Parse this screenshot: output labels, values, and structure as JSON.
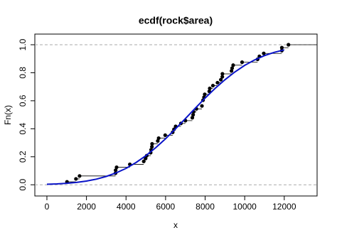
{
  "chart_data": {
    "type": "ecdf",
    "title": "ecdf(rock$area)",
    "x_label": "x",
    "y_label": "Fn(x)",
    "xlim": [
      -610,
      13660
    ],
    "ylim": [
      -0.08,
      1.076
    ],
    "xticks": [
      0,
      2000,
      4000,
      6000,
      8000,
      10000,
      12000
    ],
    "yticks": [
      {
        "value": 0,
        "label": "0.0"
      },
      0.2,
      0.4,
      0.6,
      0.8,
      {
        "value": 1,
        "label": "1.0"
      }
    ],
    "reference_lines": [
      0,
      1
    ],
    "reference_color": "#aaaaaa",
    "series": [
      {
        "color": "#000000",
        "x": [
          1016,
          1468,
          1651,
          3469,
          3475,
          3524,
          4193,
          4895,
          4990,
          5048,
          5246,
          5267,
          5308,
          5318,
          5605,
          5650,
          5980,
          6360,
          6425,
          6509,
          6775,
          7002,
          7352,
          7392,
          7416,
          7558,
          7838,
          7894,
          7943,
          7979,
          8209,
          8233,
          8393,
          8624,
          8793,
          8868,
          8874,
          9333,
          9364,
          9417,
          9867,
          10651,
          10743,
          10962,
          11876,
          11878,
          12212
        ],
        "values": [
          0.021,
          0.042,
          0.063,
          0.083,
          0.104,
          0.125,
          0.146,
          0.167,
          0.188,
          0.208,
          0.229,
          0.25,
          0.271,
          0.292,
          0.313,
          0.333,
          0.354,
          0.375,
          0.396,
          0.417,
          0.438,
          0.458,
          0.479,
          0.5,
          0.521,
          0.542,
          0.563,
          0.604,
          0.625,
          0.646,
          0.667,
          0.688,
          0.708,
          0.729,
          0.75,
          0.771,
          0.792,
          0.813,
          0.833,
          0.854,
          0.875,
          0.896,
          0.917,
          0.938,
          0.958,
          0.979,
          1
        ]
      }
    ],
    "curve": {
      "color": "#0a14c8",
      "x": [
        0,
        500,
        1000,
        1500,
        2000,
        2500,
        3000,
        3500,
        4000,
        4500,
        5000,
        5500,
        6000,
        6500,
        7000,
        7500,
        8000,
        8500,
        9000,
        9500,
        10000,
        10500,
        11000,
        11500,
        12000
      ],
      "values": [
        0.0037,
        0.0064,
        0.0106,
        0.017,
        0.0266,
        0.0403,
        0.0594,
        0.0847,
        0.1174,
        0.1584,
        0.2075,
        0.2647,
        0.3289,
        0.3989,
        0.4721,
        0.5462,
        0.619,
        0.6875,
        0.7502,
        0.8054,
        0.8527,
        0.8914,
        0.9222,
        0.9459,
        0.9635
      ]
    }
  }
}
